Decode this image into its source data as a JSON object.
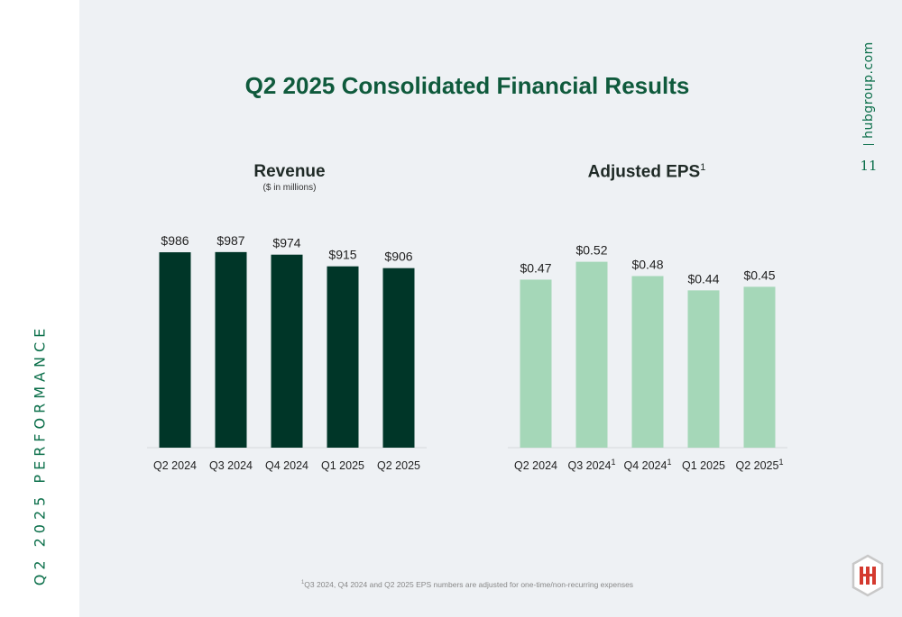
{
  "sidebar": {
    "section_label": "Q2 2025 PERFORMANCE"
  },
  "header": {
    "site_url": "hubgroup.com",
    "page_number": "11"
  },
  "page_title": "Q2 2025 Consolidated Financial Results",
  "footnote": {
    "marker": "1",
    "text": "Q3 2024, Q4 2024 and Q2 2025 EPS numbers are adjusted for one-time/non-recurring expenses"
  },
  "colors": {
    "revenue_bar": "#003628",
    "eps_bar": "#a5d7b8",
    "title": "#0f5a3c",
    "accent": "#0b6f4a"
  },
  "logo": {
    "icon": "hub-group-hexagon-logo",
    "border_color": "#c8c8c8",
    "mark_color": "#d43a2f"
  },
  "chart_data": [
    {
      "type": "bar",
      "title": "Revenue",
      "subtitle": "($ in millions)",
      "categories": [
        "Q2 2024",
        "Q3 2024",
        "Q4 2024",
        "Q1 2025",
        "Q2 2025"
      ],
      "category_markers": [
        "",
        "",
        "",
        "",
        ""
      ],
      "values": [
        986,
        987,
        974,
        915,
        906
      ],
      "data_labels": [
        "$986",
        "$987",
        "$974",
        "$915",
        "$906"
      ],
      "ylim": [
        0,
        1000
      ],
      "grid": false,
      "legend": "none"
    },
    {
      "type": "bar",
      "title": "Adjusted EPS",
      "title_marker": "1",
      "categories": [
        "Q2 2024",
        "Q3 2024",
        "Q4 2024",
        "Q1 2025",
        "Q2 2025"
      ],
      "category_markers": [
        "",
        "1",
        "1",
        "",
        "1"
      ],
      "values": [
        0.47,
        0.52,
        0.48,
        0.44,
        0.45
      ],
      "data_labels": [
        "$0.47",
        "$0.52",
        "$0.48",
        "$0.44",
        "$0.45"
      ],
      "ylim": [
        0,
        0.55
      ],
      "grid": false,
      "legend": "none"
    }
  ]
}
